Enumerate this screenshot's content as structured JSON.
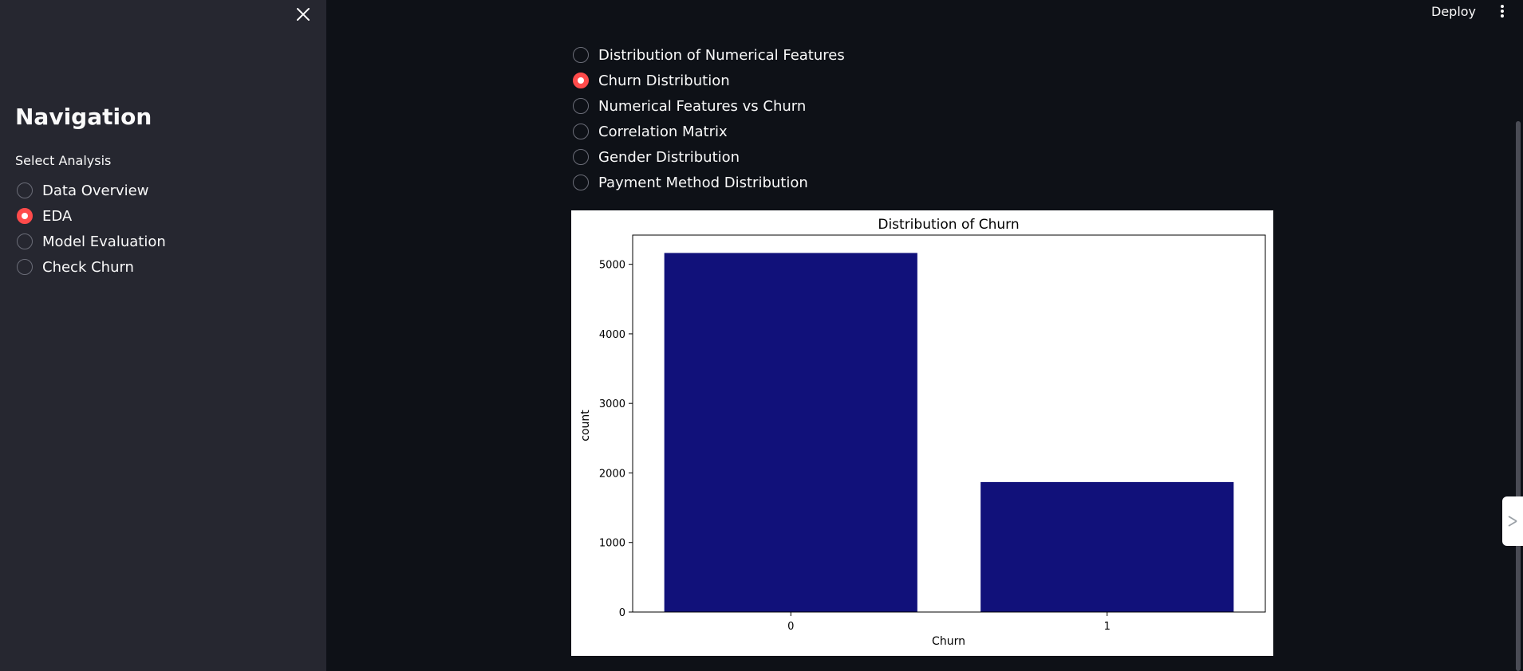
{
  "sidebar": {
    "close_icon": "close-icon",
    "title": "Navigation",
    "select_label": "Select Analysis",
    "options": [
      {
        "label": "Data Overview",
        "selected": false
      },
      {
        "label": "EDA",
        "selected": true
      },
      {
        "label": "Model Evaluation",
        "selected": false
      },
      {
        "label": "Check Churn",
        "selected": false
      }
    ]
  },
  "header": {
    "deploy_label": "Deploy",
    "menu_icon": "vertical-ellipsis-icon"
  },
  "main": {
    "eda_options": [
      {
        "label": "Distribution of Numerical Features",
        "selected": false
      },
      {
        "label": "Churn Distribution",
        "selected": true
      },
      {
        "label": "Numerical Features vs Churn",
        "selected": false
      },
      {
        "label": "Correlation Matrix",
        "selected": false
      },
      {
        "label": "Gender Distribution",
        "selected": false
      },
      {
        "label": "Payment Method Distribution",
        "selected": false
      }
    ]
  },
  "colors": {
    "accent": "#ff4b4b",
    "bar": "#11117a",
    "sidebar_bg": "#262730",
    "main_bg": "#0e1117"
  },
  "chart_data": {
    "type": "bar",
    "title": "Distribution of Churn",
    "xlabel": "Churn",
    "ylabel": "count",
    "categories": [
      "0",
      "1"
    ],
    "values": [
      5163,
      1869
    ],
    "ylim": [
      0,
      5420
    ],
    "yticks": [
      0,
      1000,
      2000,
      3000,
      4000,
      5000
    ],
    "grid": false,
    "legend": "none"
  }
}
